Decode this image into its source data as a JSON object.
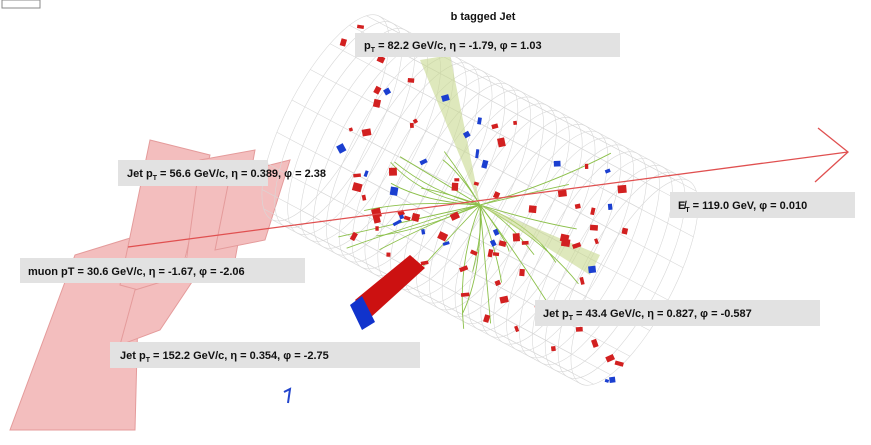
{
  "labels": {
    "btag_title": "b tagged Jet",
    "btag": {
      "pre": "p",
      "sub": "T",
      "rest": " = 82.2 GeV/c, η = -1.79, φ = 1.03"
    },
    "jet1": {
      "pre": "Jet p",
      "sub": "T",
      "rest": " = 56.6 GeV/c,  η = 0.389, φ = 2.38"
    },
    "met": {
      "pre": "E̸",
      "sub": "T",
      "rest": " = 119.0 GeV, φ = 0.010"
    },
    "muon": "muon pT = 30.6 GeV/c,  η = -1.67, φ = -2.06",
    "jet2": {
      "pre": "Jet p",
      "sub": "T",
      "rest": " = 43.4 GeV/c,  η = 0.827, φ  = -0.587"
    },
    "jet3": {
      "pre": "Jet p",
      "sub": "T",
      "rest": " = 152.2 GeV/c, η = 0.354, φ = -2.75"
    }
  }
}
